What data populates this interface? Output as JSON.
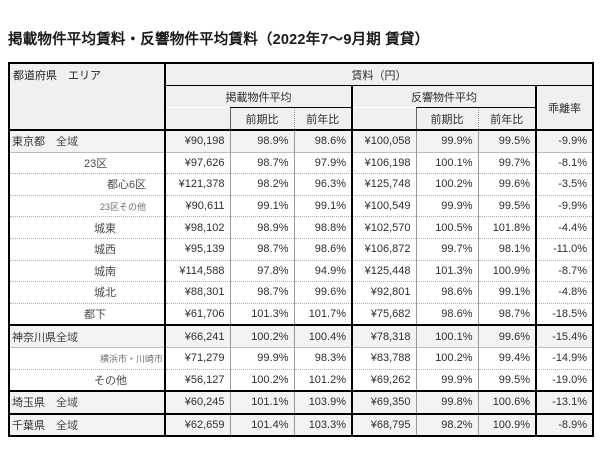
{
  "page": {
    "title": "掲載物件平均賃料・反響物件平均賃料（2022年7～9月期 賃貸）"
  },
  "table": {
    "header": {
      "area_label": "都道府県　エリア",
      "rent_label": "賃料（円）",
      "listed_group": "掲載物件平均",
      "response_group": "反響物件平均",
      "divergence_label": "乖離率",
      "prev_period": "前期比",
      "prev_year": "前年比"
    },
    "rows": [
      {
        "pref": "東京都",
        "area": "全域",
        "depth": 0,
        "small": false,
        "hl": true,
        "sep": "none",
        "vals": [
          "¥90,198",
          "98.9%",
          "98.6%",
          "¥100,058",
          "99.9%",
          "99.5%",
          "-9.9%"
        ]
      },
      {
        "pref": "",
        "area": "23区",
        "depth": 1,
        "small": false,
        "hl": false,
        "sep": "light",
        "vals": [
          "¥97,626",
          "98.7%",
          "97.9%",
          "¥106,198",
          "100.1%",
          "99.7%",
          "-8.1%"
        ]
      },
      {
        "pref": "",
        "area": "都心6区",
        "depth": 3,
        "small": false,
        "hl": false,
        "sep": "dot",
        "vals": [
          "¥121,378",
          "98.2%",
          "96.3%",
          "¥125,748",
          "100.2%",
          "99.6%",
          "-3.5%"
        ]
      },
      {
        "pref": "",
        "area": "23区その他",
        "depth": 3,
        "small": true,
        "hl": false,
        "sep": "dot",
        "vals": [
          "¥90,611",
          "99.1%",
          "99.1%",
          "¥100,549",
          "99.9%",
          "99.5%",
          "-9.9%"
        ]
      },
      {
        "pref": "",
        "area": "城東",
        "depth": 2,
        "small": false,
        "hl": false,
        "sep": "dot",
        "vals": [
          "¥98,102",
          "98.9%",
          "98.8%",
          "¥102,570",
          "100.5%",
          "101.8%",
          "-4.4%"
        ]
      },
      {
        "pref": "",
        "area": "城西",
        "depth": 2,
        "small": false,
        "hl": false,
        "sep": "dot",
        "vals": [
          "¥95,139",
          "98.7%",
          "98.6%",
          "¥106,872",
          "99.7%",
          "98.1%",
          "-11.0%"
        ]
      },
      {
        "pref": "",
        "area": "城南",
        "depth": 2,
        "small": false,
        "hl": false,
        "sep": "dot",
        "vals": [
          "¥114,588",
          "97.8%",
          "94.9%",
          "¥125,448",
          "101.3%",
          "100.9%",
          "-8.7%"
        ]
      },
      {
        "pref": "",
        "area": "城北",
        "depth": 2,
        "small": false,
        "hl": false,
        "sep": "dot",
        "vals": [
          "¥88,301",
          "98.7%",
          "99.6%",
          "¥92,801",
          "98.6%",
          "99.1%",
          "-4.8%"
        ]
      },
      {
        "pref": "",
        "area": "都下",
        "depth": 1,
        "small": false,
        "hl": false,
        "sep": "dot",
        "vals": [
          "¥61,706",
          "101.3%",
          "101.7%",
          "¥75,682",
          "98.6%",
          "98.7%",
          "-18.5%"
        ]
      },
      {
        "pref": "神奈川県",
        "area": "全域",
        "depth": 0,
        "small": false,
        "hl": true,
        "sep": "dark",
        "vals": [
          "¥66,241",
          "100.2%",
          "100.4%",
          "¥78,318",
          "100.1%",
          "99.6%",
          "-15.4%"
        ]
      },
      {
        "pref": "",
        "area": "横浜市・川崎市",
        "depth": 3,
        "small": true,
        "hl": false,
        "sep": "light",
        "vals": [
          "¥71,279",
          "99.9%",
          "98.3%",
          "¥83,788",
          "100.2%",
          "99.4%",
          "-14.9%"
        ]
      },
      {
        "pref": "",
        "area": "その他",
        "depth": 2,
        "small": false,
        "hl": false,
        "sep": "dot",
        "vals": [
          "¥56,127",
          "100.2%",
          "101.2%",
          "¥69,262",
          "99.9%",
          "99.5%",
          "-19.0%"
        ]
      },
      {
        "pref": "埼玉県",
        "area": "全域",
        "depth": 0,
        "small": false,
        "hl": true,
        "sep": "dark",
        "vals": [
          "¥60,245",
          "101.1%",
          "103.9%",
          "¥69,350",
          "99.8%",
          "100.6%",
          "-13.1%"
        ]
      },
      {
        "pref": "千葉県",
        "area": "全域",
        "depth": 0,
        "small": false,
        "hl": true,
        "sep": "dark",
        "vals": [
          "¥62,659",
          "101.4%",
          "103.3%",
          "¥68,795",
          "98.2%",
          "100.9%",
          "-8.9%"
        ]
      }
    ]
  },
  "chart_data": {
    "type": "table",
    "title": "掲載物件平均賃料・反響物件平均賃料（2022年7～9月期 賃貸）",
    "columns": [
      "都道府県",
      "エリア",
      "掲載物件平均",
      "掲載 前期比",
      "掲載 前年比",
      "反響物件平均",
      "反響 前期比",
      "反響 前年比",
      "乖離率"
    ],
    "rows": [
      [
        "東京都",
        "全域",
        "¥90,198",
        "98.9%",
        "98.6%",
        "¥100,058",
        "99.9%",
        "99.5%",
        "-9.9%"
      ],
      [
        "",
        "23区",
        "¥97,626",
        "98.7%",
        "97.9%",
        "¥106,198",
        "100.1%",
        "99.7%",
        "-8.1%"
      ],
      [
        "",
        "都心6区",
        "¥121,378",
        "98.2%",
        "96.3%",
        "¥125,748",
        "100.2%",
        "99.6%",
        "-3.5%"
      ],
      [
        "",
        "23区その他",
        "¥90,611",
        "99.1%",
        "99.1%",
        "¥100,549",
        "99.9%",
        "99.5%",
        "-9.9%"
      ],
      [
        "",
        "城東",
        "¥98,102",
        "98.9%",
        "98.8%",
        "¥102,570",
        "100.5%",
        "101.8%",
        "-4.4%"
      ],
      [
        "",
        "城西",
        "¥95,139",
        "98.7%",
        "98.6%",
        "¥106,872",
        "99.7%",
        "98.1%",
        "-11.0%"
      ],
      [
        "",
        "城南",
        "¥114,588",
        "97.8%",
        "94.9%",
        "¥125,448",
        "101.3%",
        "100.9%",
        "-8.7%"
      ],
      [
        "",
        "城北",
        "¥88,301",
        "98.7%",
        "99.6%",
        "¥92,801",
        "98.6%",
        "99.1%",
        "-4.8%"
      ],
      [
        "",
        "都下",
        "¥61,706",
        "101.3%",
        "101.7%",
        "¥75,682",
        "98.6%",
        "98.7%",
        "-18.5%"
      ],
      [
        "神奈川県",
        "全域",
        "¥66,241",
        "100.2%",
        "100.4%",
        "¥78,318",
        "100.1%",
        "99.6%",
        "-15.4%"
      ],
      [
        "",
        "横浜市・川崎市",
        "¥71,279",
        "99.9%",
        "98.3%",
        "¥83,788",
        "100.2%",
        "99.4%",
        "-14.9%"
      ],
      [
        "",
        "その他",
        "¥56,127",
        "100.2%",
        "101.2%",
        "¥69,262",
        "99.9%",
        "99.5%",
        "-19.0%"
      ],
      [
        "埼玉県",
        "全域",
        "¥60,245",
        "101.1%",
        "103.9%",
        "¥69,350",
        "99.8%",
        "100.6%",
        "-13.1%"
      ],
      [
        "千葉県",
        "全域",
        "¥62,659",
        "101.4%",
        "103.3%",
        "¥68,795",
        "98.2%",
        "100.9%",
        "-8.9%"
      ]
    ],
    "layout_hints": {
      "highlight_rows_bg": "#f3f3f3",
      "header_bg": "#f0f0f0",
      "border_color": "#000000"
    }
  }
}
